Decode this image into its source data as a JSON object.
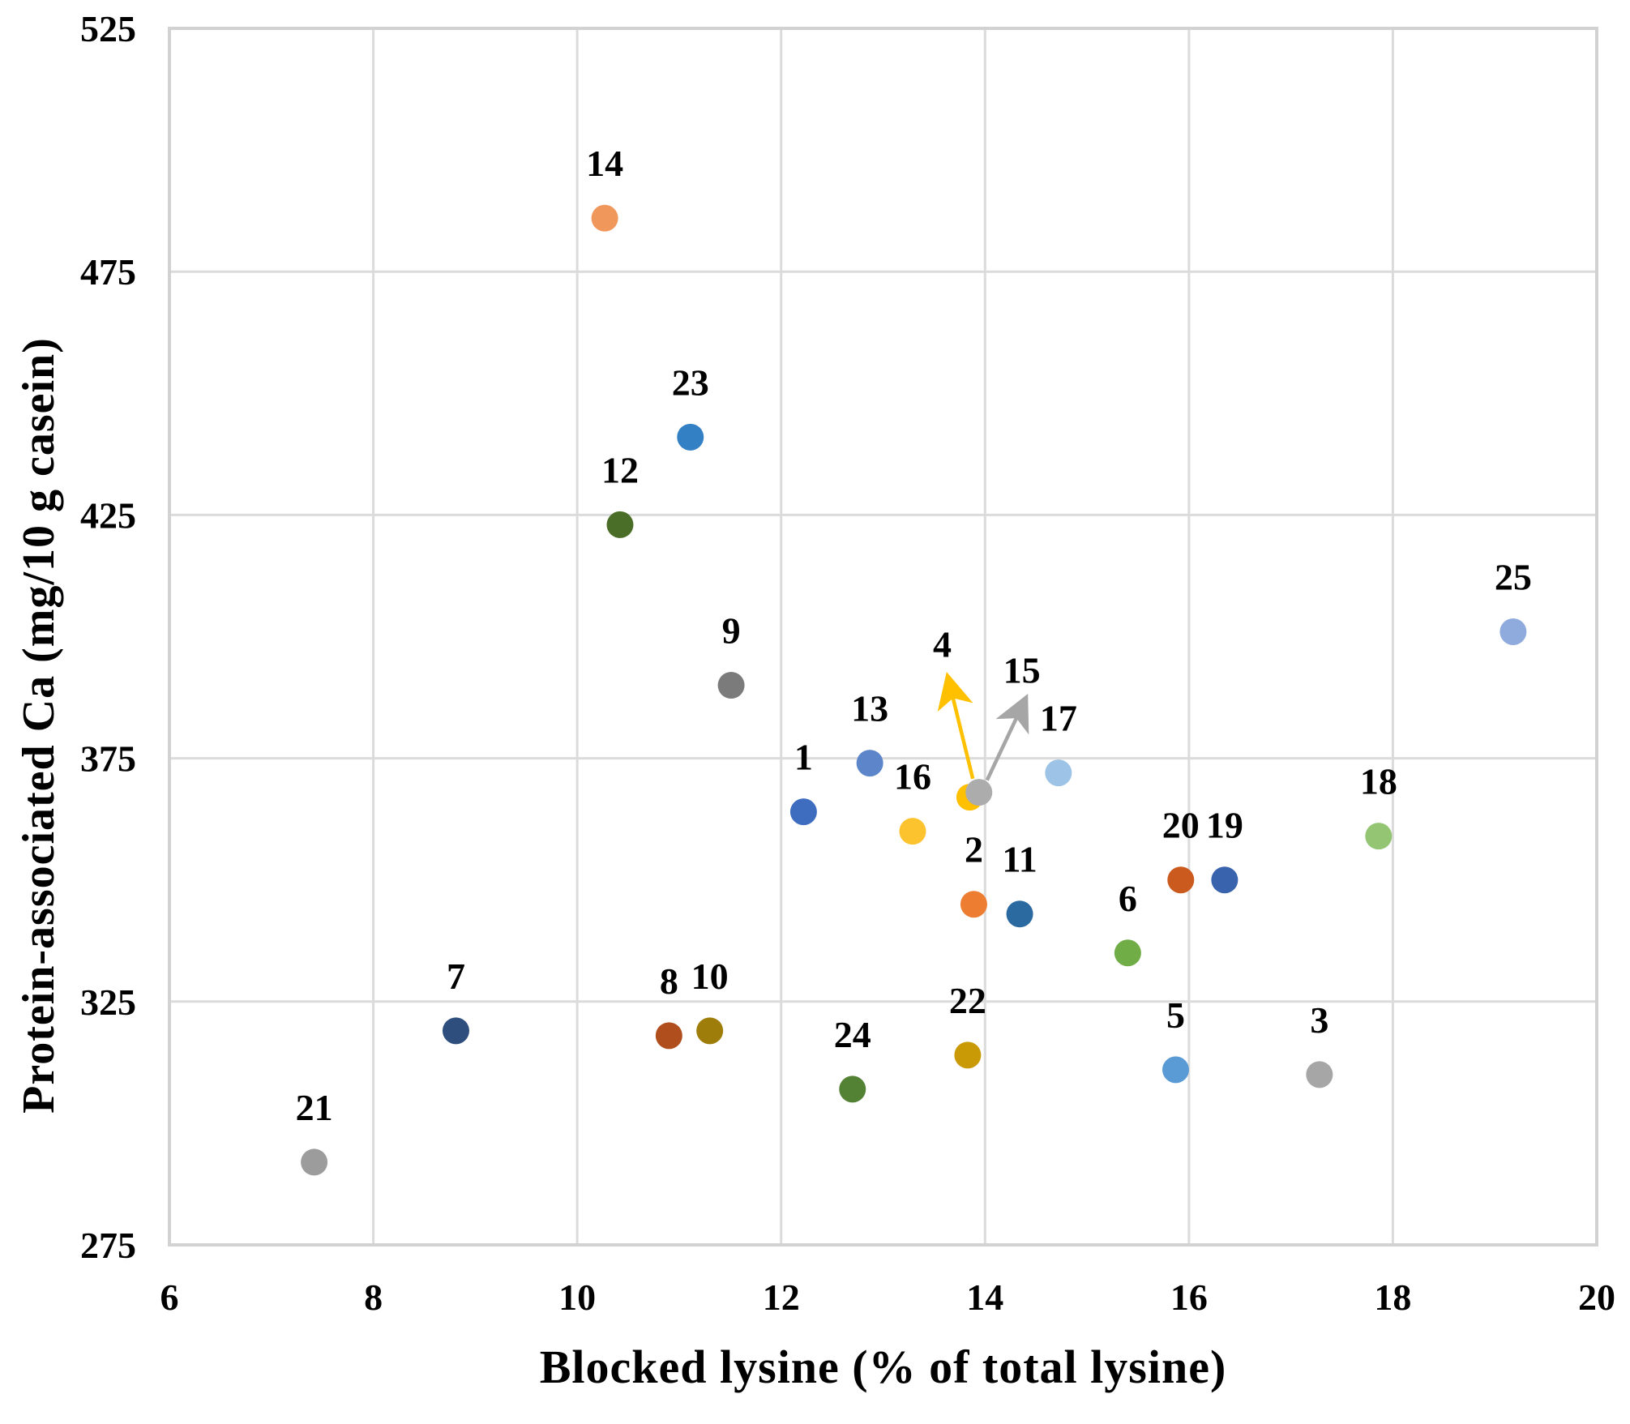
{
  "chart_data": {
    "type": "scatter",
    "title": "",
    "xlabel": "Blocked lysine (% of total lysine)",
    "ylabel": "Protein-associated Ca (mg/10 g casein)",
    "xlim": [
      6,
      20
    ],
    "ylim": [
      275,
      525
    ],
    "xticks": [
      6,
      8,
      10,
      12,
      14,
      16,
      18,
      20
    ],
    "yticks": [
      275,
      325,
      375,
      425,
      475,
      525
    ],
    "grid": true,
    "legend": "none",
    "points": [
      {
        "label": "4",
        "x": 13.85,
        "y": 367,
        "color": "#FFC000",
        "show_label": false
      },
      {
        "label": "15",
        "x": 13.94,
        "y": 368,
        "color": "#ACACAC",
        "show_label": false
      },
      {
        "label": "1",
        "x": 12.22,
        "y": 364,
        "color": "#3E6DBF"
      },
      {
        "label": "2",
        "x": 13.89,
        "y": 345,
        "color": "#ED7D31"
      },
      {
        "label": "3",
        "x": 17.28,
        "y": 310,
        "color": "#A6A6A6"
      },
      {
        "label": "5",
        "x": 15.87,
        "y": 311,
        "color": "#5B9BD5"
      },
      {
        "label": "6",
        "x": 15.4,
        "y": 335,
        "color": "#70AD47"
      },
      {
        "label": "7",
        "x": 8.81,
        "y": 319,
        "color": "#2E4E7E"
      },
      {
        "label": "8",
        "x": 10.9,
        "y": 318,
        "color": "#B04F1D"
      },
      {
        "label": "9",
        "x": 11.51,
        "y": 390,
        "color": "#7B7B7B"
      },
      {
        "label": "10",
        "x": 11.3,
        "y": 319,
        "color": "#9E7D0A"
      },
      {
        "label": "11",
        "x": 14.34,
        "y": 343,
        "color": "#2A6AA0"
      },
      {
        "label": "12",
        "x": 10.42,
        "y": 423,
        "color": "#4A6E28"
      },
      {
        "label": "13",
        "x": 12.87,
        "y": 374,
        "color": "#5C86C9"
      },
      {
        "label": "14",
        "x": 10.27,
        "y": 486,
        "color": "#F0975C"
      },
      {
        "label": "16",
        "x": 13.29,
        "y": 360,
        "color": "#FDC32F"
      },
      {
        "label": "17",
        "x": 14.72,
        "y": 372,
        "color": "#9DC3E6"
      },
      {
        "label": "18",
        "x": 17.86,
        "y": 359,
        "color": "#93C572"
      },
      {
        "label": "19",
        "x": 16.35,
        "y": 350,
        "color": "#3A63AE"
      },
      {
        "label": "20",
        "x": 15.92,
        "y": 350,
        "color": "#CB5A1E"
      },
      {
        "label": "21",
        "x": 7.42,
        "y": 292,
        "color": "#9C9C9C"
      },
      {
        "label": "22",
        "x": 13.83,
        "y": 314,
        "color": "#C99A05"
      },
      {
        "label": "23",
        "x": 11.11,
        "y": 441,
        "color": "#3381C4"
      },
      {
        "label": "24",
        "x": 12.7,
        "y": 307,
        "color": "#548235"
      },
      {
        "label": "25",
        "x": 19.18,
        "y": 401,
        "color": "#8FAADC"
      }
    ],
    "annotations": [
      {
        "label": "4",
        "label_x": 13.58,
        "label_y": 398.5,
        "color": "#FFC000",
        "arrow": {
          "x1": 13.88,
          "y1": 370.8,
          "x2": 13.64,
          "y2": 391.3
        }
      },
      {
        "label": "15",
        "label_x": 14.36,
        "label_y": 393.2,
        "color": "#A6A6A6",
        "arrow": {
          "x1": 14.02,
          "y1": 370.5,
          "x2": 14.39,
          "y2": 386.9
        }
      }
    ]
  },
  "styles": {
    "background": "#FFFFFF",
    "grid_color": "#DBDBDB",
    "frame_color": "#D2D2D2",
    "text_color": "#000000"
  }
}
